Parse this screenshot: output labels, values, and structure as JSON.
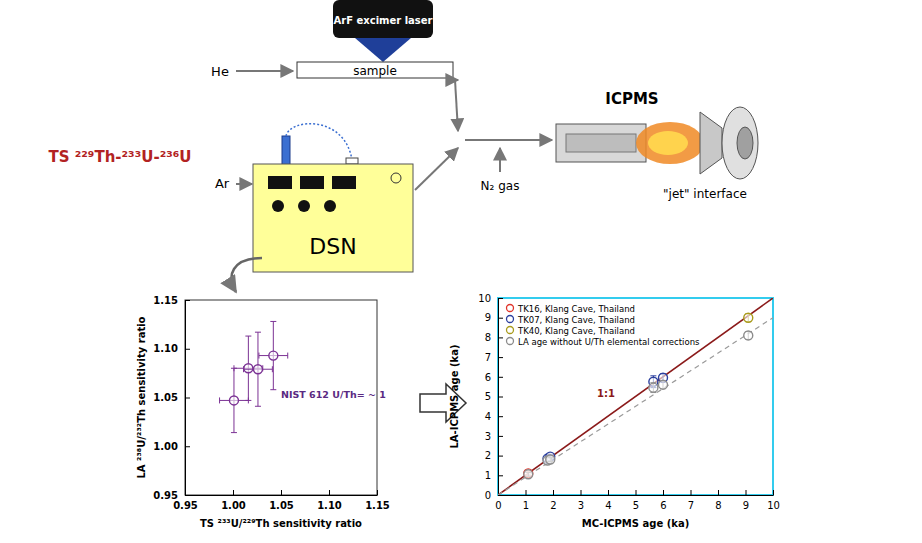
{
  "diagram": {
    "laser": "ArF excimer laser",
    "sample": "sample",
    "he": "He",
    "ar": "Ar",
    "ts": "TS ²²⁹Th-²³³U-²³⁶U",
    "dsn": "DSN",
    "icpms": "ICPMS",
    "n2": "N₂ gas",
    "jet": "\"jet\" interface"
  },
  "chart_data": [
    {
      "type": "scatter",
      "xlabel": "TS ²³³U/²²⁹Th sensitivity ratio",
      "ylabel": "LA ²³⁸U/²³²Th sensitivity ratio",
      "annotation": "NIST 612 U/Th= ~ 1",
      "xlim": [
        0.95,
        1.15
      ],
      "ylim": [
        0.95,
        1.15
      ],
      "xticks": [
        0.95,
        {
          "value": 1,
          "label": "1.00"
        },
        1.05,
        {
          "value": 1.1,
          "label": "1.10"
        },
        1.15
      ],
      "yticks": [
        0.95,
        {
          "value": 1,
          "label": "1.00"
        },
        1.05,
        {
          "value": 1.1,
          "label": "1.10"
        },
        1.15
      ],
      "series": [
        {
          "color": "#7b3294",
          "marker": "circle",
          "x": [
            1.001,
            1.016,
            1.026,
            1.042
          ],
          "values": [
            1.047,
            1.08,
            1.079,
            1.093
          ],
          "x_errors": [
            0.015,
            0.015,
            0.015,
            0.015
          ],
          "errors": [
            0.033,
            0.033,
            0.038,
            0.035
          ]
        }
      ]
    },
    {
      "type": "scatter",
      "xlabel": "MC-ICPMS age (ka)",
      "ylabel": "LA-ICPMS age (ka)",
      "annotation": "1:1",
      "xlim": [
        0,
        10
      ],
      "ylim": [
        0,
        10
      ],
      "xticks": [
        0,
        1,
        2,
        3,
        4,
        5,
        6,
        7,
        8,
        9,
        10
      ],
      "yticks": [
        0,
        1,
        2,
        3,
        4,
        5,
        6,
        7,
        8,
        9,
        10
      ],
      "legend": "upper left",
      "series": [
        {
          "type": "line",
          "line_style": "solid",
          "color": "#8b1a1a",
          "x": [
            0,
            10
          ],
          "values": [
            0,
            10
          ]
        },
        {
          "type": "line",
          "line_style": "dashed",
          "color": "#9a9a9a",
          "x": [
            0,
            10
          ],
          "values": [
            0,
            9
          ]
        },
        {
          "name": "TK16, Klang Cave, Thailand",
          "color": "#e0352b",
          "marker": "circle",
          "x": [
            1.1
          ],
          "values": [
            1.1
          ],
          "errors": [
            0.1
          ]
        },
        {
          "name": "TK07, Klang Cave, Thailand",
          "color": "#2b3f9e",
          "marker": "circle",
          "x": [
            1.8,
            1.9,
            5.65,
            6.0
          ],
          "values": [
            1.85,
            1.95,
            5.75,
            5.95
          ],
          "errors": [
            0.12,
            0.12,
            0.3,
            0.2
          ]
        },
        {
          "name": "TK40, Klang Cave, Thailand",
          "color": "#a99b1c",
          "marker": "circle",
          "x": [
            9.1
          ],
          "values": [
            9.0
          ],
          "errors": [
            0.2
          ]
        },
        {
          "name": "LA age without U/Th elemental corrections",
          "color": "#8c8c8c",
          "marker": "circle",
          "x": [
            1.1,
            1.8,
            1.9,
            5.65,
            6.0,
            9.1
          ],
          "values": [
            1.05,
            1.75,
            1.8,
            5.45,
            5.6,
            8.1
          ],
          "errors": [
            0.1,
            0.1,
            0.1,
            0.25,
            0.2,
            0.2
          ]
        }
      ]
    }
  ]
}
